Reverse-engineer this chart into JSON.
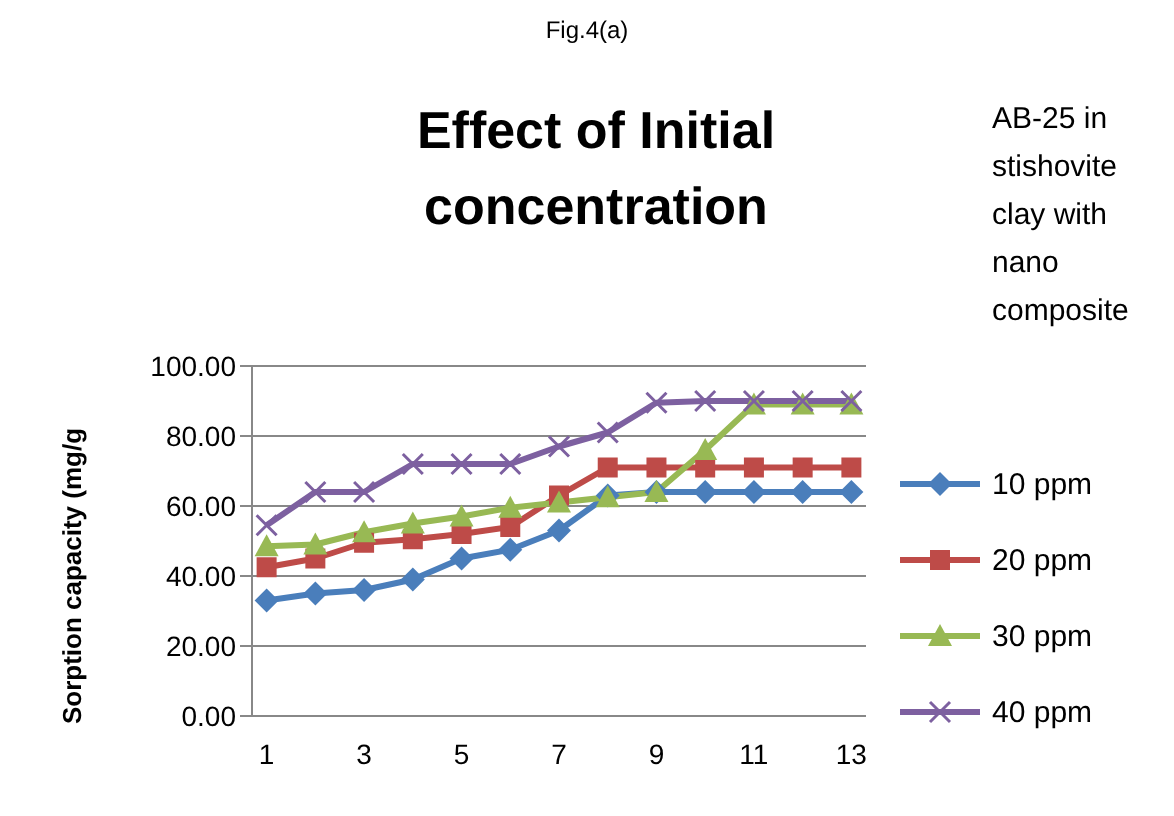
{
  "chart_data": {
    "type": "line",
    "title": "Effect of Initial concentration",
    "legend_title": "AB-25  in stishovite clay with  nano composite",
    "ylabel": "Sorption capacity (mg/g",
    "annotations": [
      "Fig.4(a)"
    ],
    "x": [
      1,
      2,
      3,
      4,
      5,
      6,
      7,
      8,
      9,
      10,
      11,
      12,
      13
    ],
    "xlim": [
      0.7,
      13.3
    ],
    "xticks": [
      1,
      3,
      5,
      7,
      9,
      11,
      13
    ],
    "series": [
      {
        "name": "10 ppm",
        "color": "#4a7ebb",
        "marker": "diamond",
        "values": [
          33,
          35,
          36,
          39,
          45,
          47.5,
          53,
          63,
          64,
          64,
          64,
          64,
          64
        ]
      },
      {
        "name": "20 ppm",
        "color": "#be4b48",
        "marker": "square",
        "values": [
          42.5,
          45,
          49.5,
          50.5,
          52,
          54,
          63,
          71,
          71,
          71,
          71,
          71,
          71
        ]
      },
      {
        "name": "30 ppm",
        "color": "#98b954",
        "marker": "triangle",
        "values": [
          48.5,
          49,
          52.5,
          55,
          57,
          59.5,
          61,
          62.5,
          64,
          76,
          89,
          89,
          89
        ]
      },
      {
        "name": "40 ppm",
        "color": "#7d60a0",
        "marker": "cross",
        "values": [
          54.5,
          64,
          64,
          72,
          72,
          72,
          77,
          81,
          89.5,
          90,
          90,
          90,
          90
        ]
      }
    ],
    "ylim": [
      0,
      100
    ],
    "yticks": [
      {
        "value": 0,
        "label": "0.00"
      },
      {
        "value": 20,
        "label": "20.00"
      },
      {
        "value": 40,
        "label": "40.00"
      },
      {
        "value": 60,
        "label": "60.00"
      },
      {
        "value": 80,
        "label": "80.00"
      },
      {
        "value": 100,
        "label": "100.00"
      }
    ],
    "grid": "y",
    "legend": "right",
    "line_style": "solid"
  }
}
